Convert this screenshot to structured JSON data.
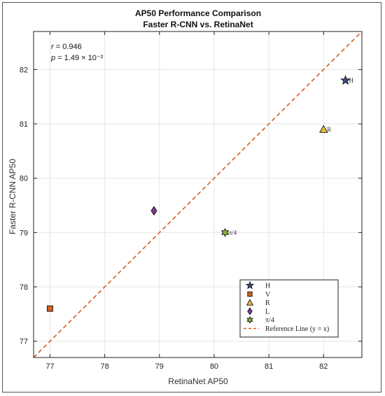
{
  "chart_data": {
    "type": "scatter",
    "title": "AP50 Performance Comparison",
    "subtitle": "Faster R-CNN vs. RetinaNet",
    "xlabel": "RetinaNet AP50",
    "ylabel": "Faster R-CNN AP50",
    "xlim": [
      76.7,
      82.7
    ],
    "ylim": [
      76.7,
      82.7
    ],
    "x_ticks": [
      77,
      78,
      79,
      80,
      81,
      82
    ],
    "y_ticks": [
      77,
      78,
      79,
      80,
      81,
      82
    ],
    "grid": true,
    "stats": {
      "r_symbol": "r",
      "r_value": " = 0.946",
      "p_symbol": "p",
      "p_value": " = 1.49 × 10⁻²"
    },
    "points": [
      {
        "name": "H",
        "x": 82.4,
        "y": 81.8,
        "marker": "star",
        "color": "#3a4f8a",
        "point_label": "H"
      },
      {
        "name": "V",
        "x": 77.0,
        "y": 77.6,
        "marker": "square",
        "color": "#d35f1f",
        "point_label": ""
      },
      {
        "name": "R",
        "x": 82.0,
        "y": 80.9,
        "marker": "triangle",
        "color": "#e9b93a",
        "point_label": "R"
      },
      {
        "name": "L",
        "x": 78.9,
        "y": 79.4,
        "marker": "diamond",
        "color": "#7b3a96",
        "point_label": ""
      },
      {
        "name": "π/4",
        "x": 80.2,
        "y": 79.0,
        "marker": "hexagram",
        "color": "#8ab832",
        "point_label": "π/4"
      }
    ],
    "reference_line": {
      "label": "Reference Line (y = x)",
      "color": "#d35f1f"
    },
    "legend_position": "lower-right"
  }
}
